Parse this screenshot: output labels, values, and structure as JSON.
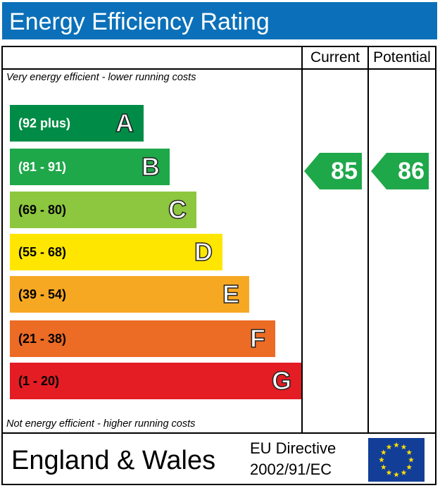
{
  "header": {
    "title": "Energy Efficiency Rating"
  },
  "columns": {
    "current": "Current",
    "potential": "Potential"
  },
  "notes": {
    "top": "Very energy efficient - lower running costs",
    "bottom": "Not energy efficient - higher running costs"
  },
  "footer": {
    "region": "England & Wales",
    "directive_line1": "EU Directive",
    "directive_line2": "2002/91/EC",
    "flag_icon": "eu-flag-icon"
  },
  "chart_data": {
    "type": "bar",
    "categories": [
      "A",
      "B",
      "C",
      "D",
      "E",
      "F",
      "G"
    ],
    "ranges": [
      "(92 plus)",
      "(81 - 91)",
      "(69 - 80)",
      "(55 - 68)",
      "(39 - 54)",
      "(21 - 38)",
      "(1 - 20)"
    ],
    "colors": [
      "#008c46",
      "#1fa84a",
      "#8dc63f",
      "#ffe600",
      "#f7a823",
      "#ec6b25",
      "#e31d23"
    ],
    "range_text_colors": [
      "#ffffff",
      "#ffffff",
      "#000000",
      "#000000",
      "#000000",
      "#000000",
      "#000000"
    ],
    "current": {
      "value": 85,
      "band": "B",
      "color": "#1fa84a"
    },
    "potential": {
      "value": 86,
      "band": "B",
      "color": "#1fa84a"
    }
  }
}
